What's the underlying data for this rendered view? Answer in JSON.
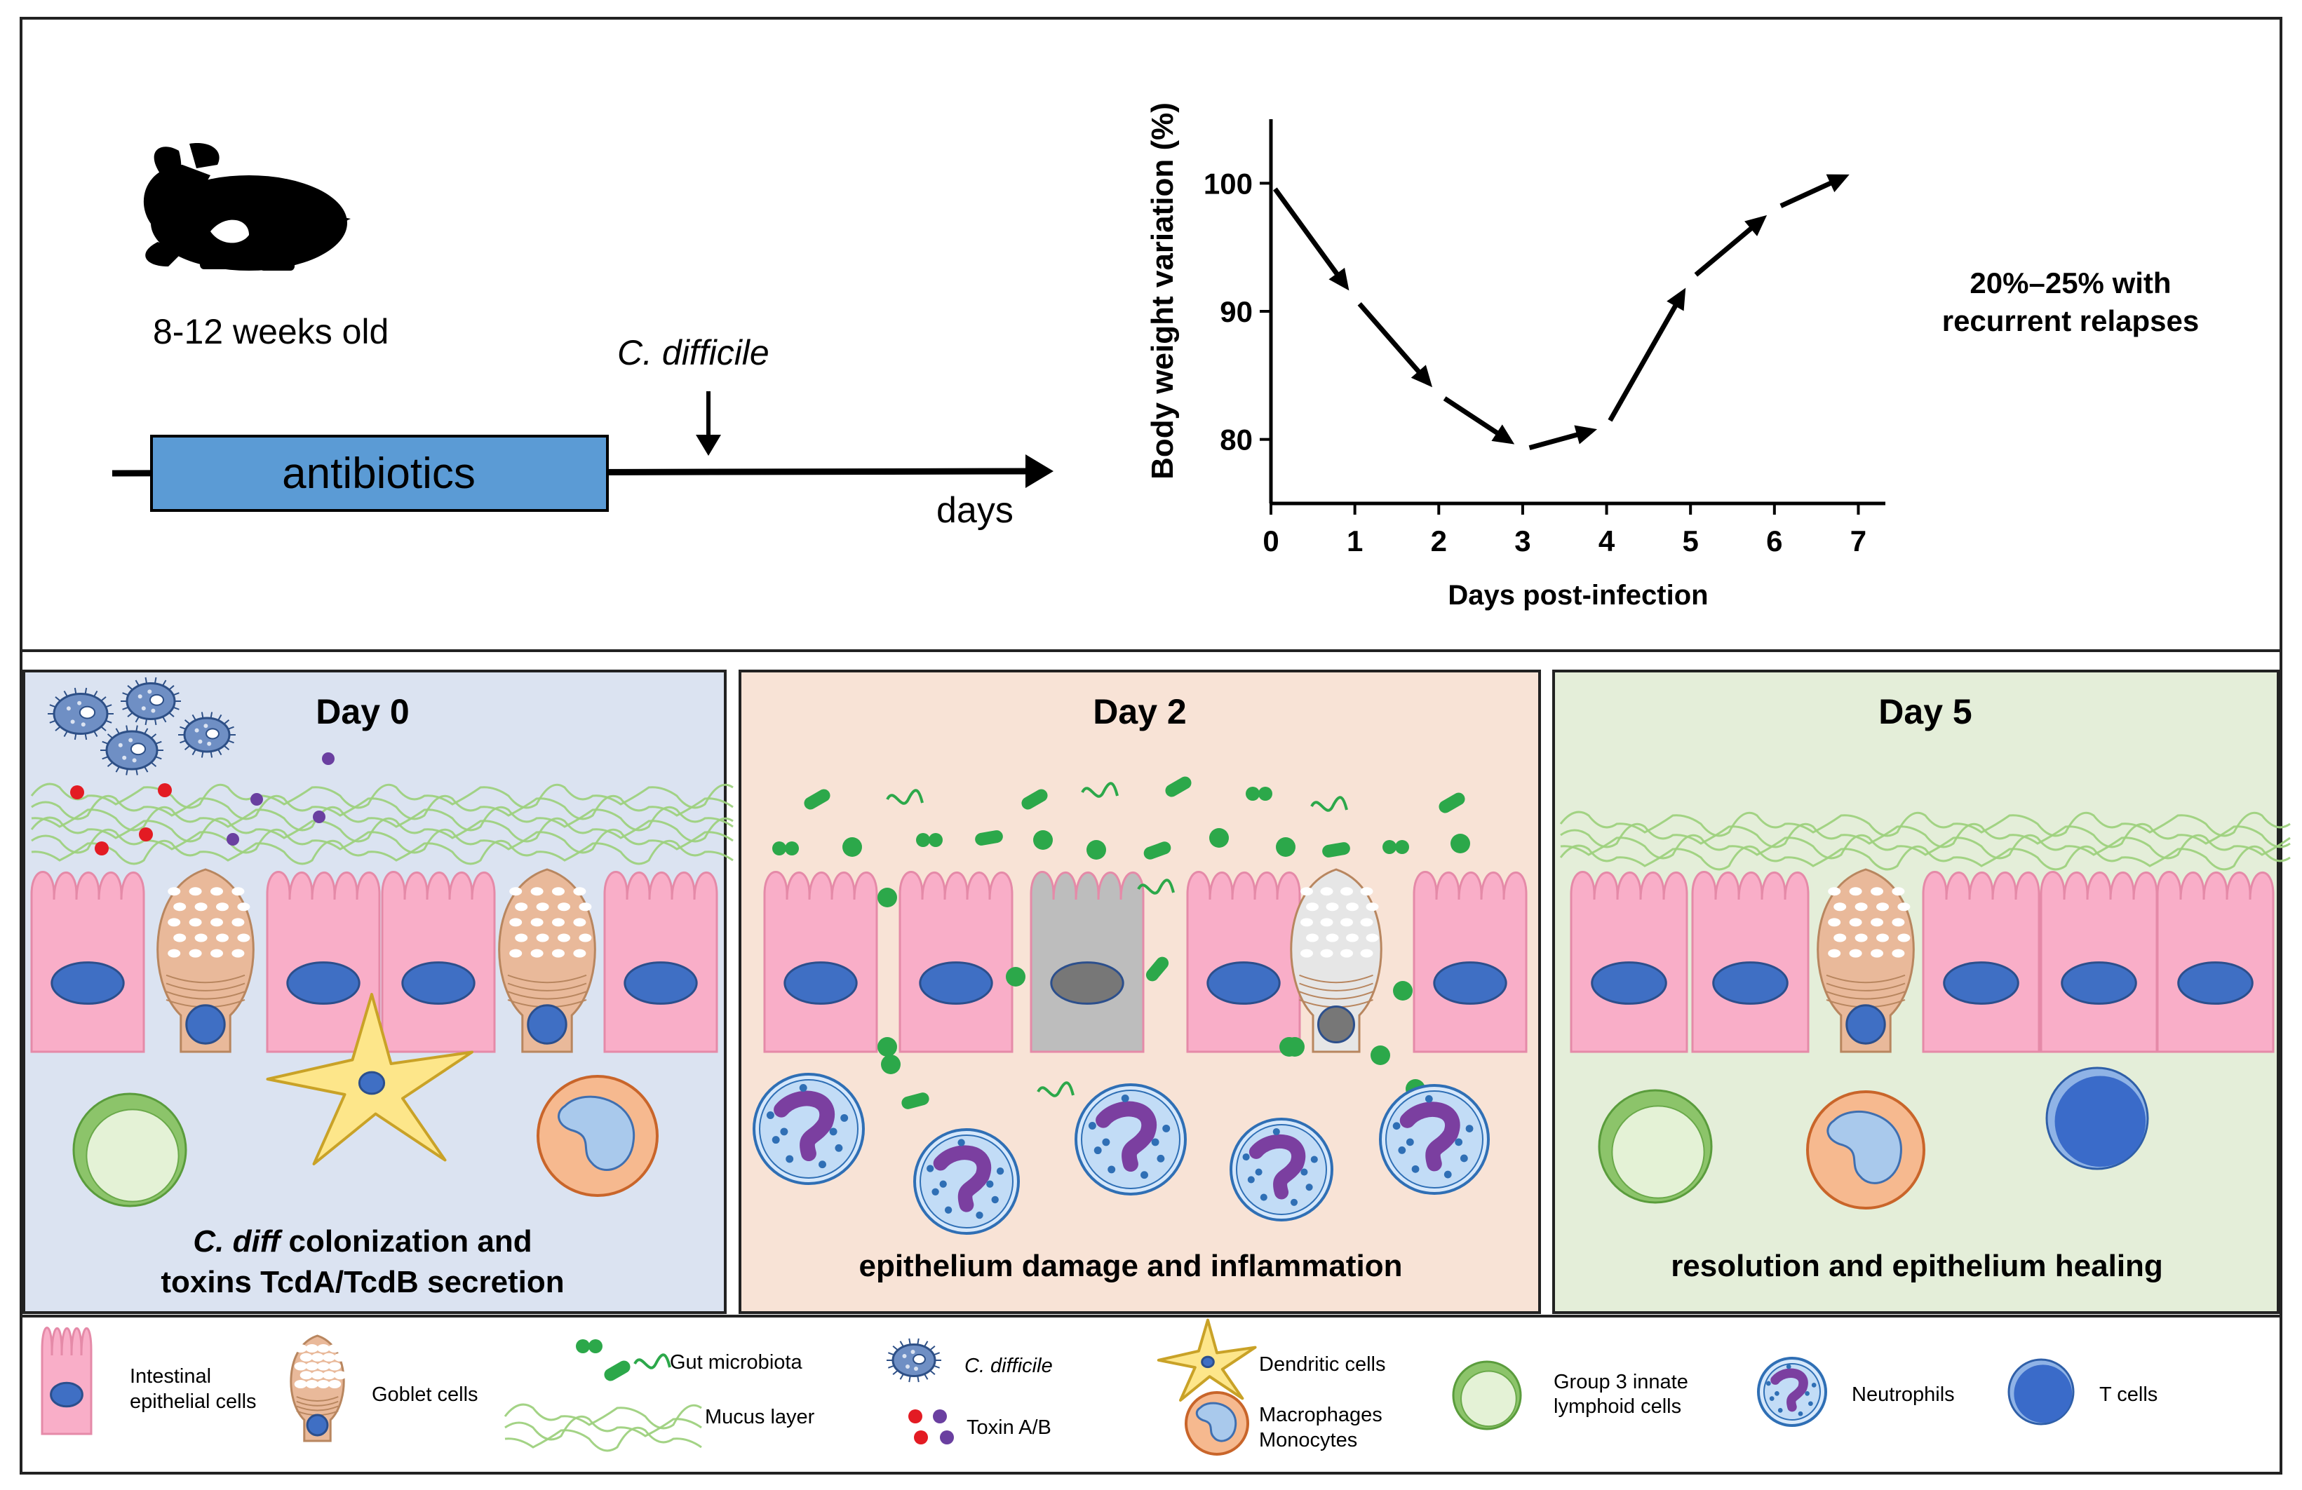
{
  "colors": {
    "antibiotics_box": "#5b9bd5",
    "panel_day0": "#dbe3f1",
    "panel_day2": "#f8e3d6",
    "panel_day5": "#e4eed9",
    "epithelial": "#f9aec8",
    "nucleus": "#3f6fc4",
    "goblet": "#e9b99a",
    "mucus": "#9ed17e",
    "microbiota": "#2ca84a",
    "cdiff": "#4a6fa8",
    "toxin_a": "#e31b23",
    "toxin_b": "#6a3fa0",
    "dendritic": "#fde68a",
    "ilc3": "#8cc46a",
    "neutrophil": "#4a8ed8",
    "neutrophil_nucleus": "#7b3fa0",
    "macrophage": "#f6b98f",
    "tcell": "#3a6bc9",
    "damaged": "#bdbdbd"
  },
  "timeline": {
    "age_label": "8-12 weeks old",
    "antibiotics_label": "antibiotics",
    "infection_label": "C. difficile",
    "days_label": "days",
    "mouse_icon": "mouse-icon"
  },
  "chart_data": {
    "type": "line",
    "title": "",
    "xlabel": "Days post-infection",
    "ylabel": "Body weight variation (%)",
    "x": [
      0,
      1,
      2,
      3,
      4,
      5,
      6,
      7
    ],
    "series": [
      {
        "name": "Body weight",
        "values": [
          100,
          91,
          83.5,
          79.2,
          81,
          92.5,
          98,
          101
        ]
      }
    ],
    "x_ticks": [
      "0",
      "1",
      "2",
      "3",
      "4",
      "5",
      "6",
      "7"
    ],
    "y_ticks": [
      "80",
      "90",
      "100"
    ],
    "y_tick_values": [
      80,
      90,
      100
    ],
    "xlim": [
      0,
      7
    ],
    "ylim": [
      75,
      105
    ],
    "grid": false,
    "annotation": "20%–25% with recurrent relapses"
  },
  "relapse_note": {
    "line1": "20%–25% with",
    "line2": "recurrent relapses"
  },
  "panels": [
    {
      "title": "Day 0",
      "caption_italic": "C. diff",
      "caption_line1": " colonization and",
      "caption_line2": "toxins TcdA/TcdB secretion"
    },
    {
      "title": "Day 2",
      "caption_line1": "epithelium damage and inflammation"
    },
    {
      "title": "Day 5",
      "caption_line1": "resolution and epithelium healing"
    }
  ],
  "legend": {
    "epithelial_line1": "Intestinal",
    "epithelial_line2": "epithelial cells",
    "goblet": "Goblet cells",
    "microbiota": "Gut microbiota",
    "mucus": "Mucus layer",
    "cdiff": "C. difficile",
    "toxin": "Toxin A/B",
    "dendritic": "Dendritic cells",
    "macrophage_line1": "Macrophages",
    "macrophage_line2": "Monocytes",
    "ilc3_line1": "Group 3 innate",
    "ilc3_line2": "lymphoid cells",
    "neutrophils": "Neutrophils",
    "tcells": "T cells"
  }
}
